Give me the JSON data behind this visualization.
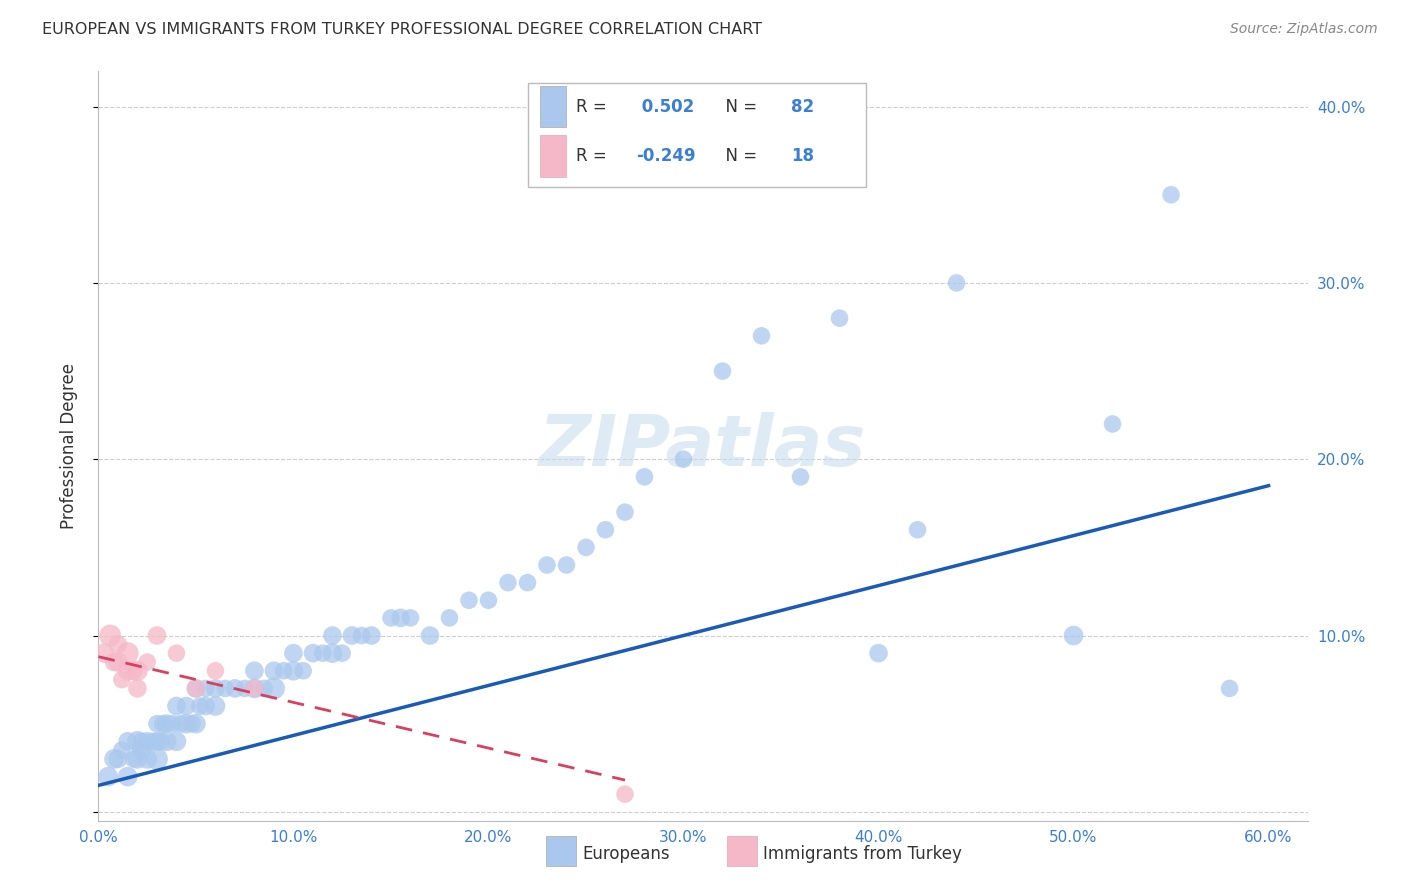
{
  "title": "EUROPEAN VS IMMIGRANTS FROM TURKEY PROFESSIONAL DEGREE CORRELATION CHART",
  "source": "Source: ZipAtlas.com",
  "ylabel": "Professional Degree",
  "xlim": [
    0.0,
    0.62
  ],
  "ylim": [
    -0.005,
    0.42
  ],
  "xticks": [
    0.0,
    0.1,
    0.2,
    0.3,
    0.4,
    0.5,
    0.6
  ],
  "yticks": [
    0.0,
    0.1,
    0.2,
    0.3,
    0.4
  ],
  "xticklabels": [
    "0.0%",
    "10.0%",
    "20.0%",
    "30.0%",
    "40.0%",
    "50.0%",
    "60.0%"
  ],
  "yticklabels_right": [
    "",
    "10.0%",
    "20.0%",
    "30.0%",
    "40.0%"
  ],
  "legend_eu_R": "0.502",
  "legend_eu_N": "82",
  "legend_tr_R": "-0.249",
  "legend_tr_N": "18",
  "eu_color": "#aac8ed",
  "tr_color": "#f5b8c8",
  "eu_line_color": "#1a5ab8",
  "tr_line_color": "#d84060",
  "tick_color": "#3a7fd4",
  "background_color": "#ffffff",
  "grid_color": "#c8c8c8",
  "watermark": "ZIPatlas",
  "eu_scatter_x": [
    0.005,
    0.008,
    0.01,
    0.012,
    0.015,
    0.015,
    0.018,
    0.02,
    0.02,
    0.022,
    0.022,
    0.025,
    0.025,
    0.028,
    0.03,
    0.03,
    0.03,
    0.032,
    0.033,
    0.035,
    0.035,
    0.038,
    0.04,
    0.04,
    0.042,
    0.045,
    0.045,
    0.048,
    0.05,
    0.05,
    0.052,
    0.055,
    0.055,
    0.06,
    0.06,
    0.065,
    0.07,
    0.075,
    0.08,
    0.08,
    0.085,
    0.09,
    0.09,
    0.095,
    0.1,
    0.1,
    0.105,
    0.11,
    0.115,
    0.12,
    0.12,
    0.125,
    0.13,
    0.135,
    0.14,
    0.15,
    0.155,
    0.16,
    0.17,
    0.18,
    0.19,
    0.2,
    0.21,
    0.22,
    0.23,
    0.24,
    0.25,
    0.26,
    0.27,
    0.28,
    0.3,
    0.32,
    0.34,
    0.36,
    0.38,
    0.4,
    0.42,
    0.44,
    0.5,
    0.52,
    0.55,
    0.58
  ],
  "eu_scatter_y": [
    0.02,
    0.03,
    0.03,
    0.035,
    0.02,
    0.04,
    0.03,
    0.03,
    0.04,
    0.035,
    0.04,
    0.03,
    0.04,
    0.04,
    0.03,
    0.04,
    0.05,
    0.04,
    0.05,
    0.04,
    0.05,
    0.05,
    0.04,
    0.06,
    0.05,
    0.05,
    0.06,
    0.05,
    0.05,
    0.07,
    0.06,
    0.06,
    0.07,
    0.06,
    0.07,
    0.07,
    0.07,
    0.07,
    0.07,
    0.08,
    0.07,
    0.07,
    0.08,
    0.08,
    0.08,
    0.09,
    0.08,
    0.09,
    0.09,
    0.09,
    0.1,
    0.09,
    0.1,
    0.1,
    0.1,
    0.11,
    0.11,
    0.11,
    0.1,
    0.11,
    0.12,
    0.12,
    0.13,
    0.13,
    0.14,
    0.14,
    0.15,
    0.16,
    0.17,
    0.19,
    0.2,
    0.25,
    0.27,
    0.19,
    0.28,
    0.09,
    0.16,
    0.3,
    0.1,
    0.22,
    0.35,
    0.07
  ],
  "eu_scatter_size": [
    200,
    200,
    180,
    160,
    200,
    180,
    160,
    200,
    220,
    180,
    160,
    200,
    180,
    160,
    250,
    180,
    160,
    180,
    160,
    200,
    180,
    160,
    200,
    180,
    160,
    200,
    180,
    160,
    200,
    180,
    160,
    180,
    160,
    200,
    180,
    160,
    180,
    160,
    200,
    180,
    160,
    250,
    180,
    160,
    200,
    180,
    160,
    180,
    160,
    200,
    180,
    160,
    180,
    160,
    180,
    160,
    180,
    160,
    180,
    160,
    160,
    160,
    160,
    160,
    160,
    160,
    160,
    160,
    160,
    160,
    160,
    160,
    160,
    160,
    160,
    180,
    160,
    160,
    200,
    160,
    160,
    160
  ],
  "tr_scatter_x": [
    0.003,
    0.006,
    0.008,
    0.01,
    0.01,
    0.012,
    0.015,
    0.015,
    0.018,
    0.02,
    0.02,
    0.025,
    0.03,
    0.04,
    0.05,
    0.06,
    0.08,
    0.27
  ],
  "tr_scatter_y": [
    0.09,
    0.1,
    0.085,
    0.085,
    0.095,
    0.075,
    0.09,
    0.08,
    0.08,
    0.08,
    0.07,
    0.085,
    0.1,
    0.09,
    0.07,
    0.08,
    0.07,
    0.01
  ],
  "tr_scatter_size": [
    200,
    250,
    180,
    200,
    180,
    160,
    250,
    200,
    180,
    220,
    180,
    160,
    180,
    160,
    180,
    160,
    160,
    160
  ],
  "eu_line_x": [
    0.0,
    0.6
  ],
  "eu_line_y": [
    0.015,
    0.185
  ],
  "tr_line_x": [
    0.0,
    0.27
  ],
  "tr_line_y": [
    0.088,
    0.018
  ]
}
